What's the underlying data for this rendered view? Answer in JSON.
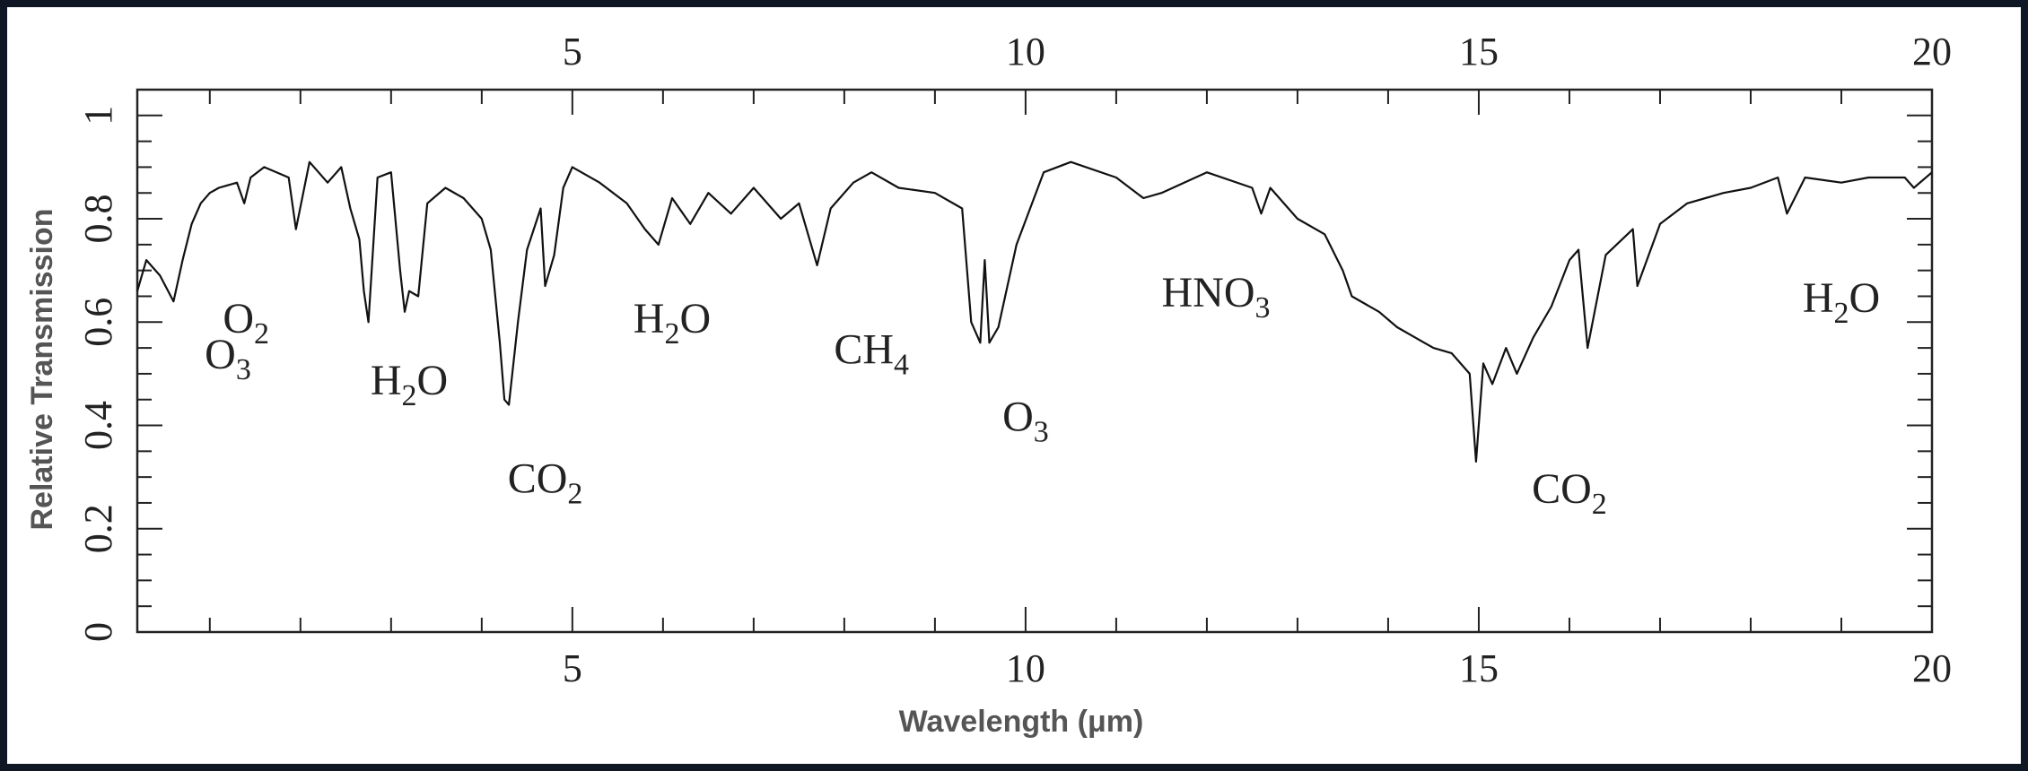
{
  "chart_data": {
    "type": "line",
    "xlabel": "Wavelength (μm)",
    "ylabel": "Relative Transmission",
    "xlim": [
      0.2,
      20
    ],
    "ylim": [
      0,
      1.05
    ],
    "top_axis": true,
    "grid": false,
    "x_ticks": [
      5,
      10,
      15,
      20
    ],
    "y_ticks": [
      0,
      0.2,
      0.4,
      0.6,
      0.8,
      1
    ],
    "x_tick_labels": [
      "5",
      "10",
      "15",
      "20"
    ],
    "y_tick_labels": [
      "0",
      "0.2",
      "0.4",
      "0.6",
      "0.8",
      "1"
    ],
    "series": [
      {
        "x": [
          0.2,
          0.3,
          0.45,
          0.6,
          0.7,
          0.8,
          0.9,
          1.0,
          1.1,
          1.3,
          1.38,
          1.45,
          1.6,
          1.87,
          1.95,
          2.1,
          2.3,
          2.45,
          2.55,
          2.65,
          2.7,
          2.75,
          2.85,
          3.0,
          3.1,
          3.15,
          3.2,
          3.3,
          3.4,
          3.6,
          3.8,
          4.0,
          4.1,
          4.2,
          4.25,
          4.3,
          4.4,
          4.5,
          4.65,
          4.7,
          4.8,
          4.9,
          5.0,
          5.3,
          5.6,
          5.8,
          5.95,
          6.1,
          6.3,
          6.5,
          6.75,
          7.0,
          7.3,
          7.5,
          7.7,
          7.85,
          8.1,
          8.3,
          8.6,
          9.0,
          9.3,
          9.4,
          9.5,
          9.55,
          9.6,
          9.7,
          9.9,
          10.2,
          10.5,
          11.0,
          11.3,
          11.5,
          12.0,
          12.5,
          12.6,
          12.7,
          13.0,
          13.3,
          13.5,
          13.6,
          13.9,
          14.1,
          14.3,
          14.5,
          14.7,
          14.9,
          14.97,
          15.05,
          15.15,
          15.3,
          15.42,
          15.6,
          15.8,
          16.0,
          16.1,
          16.2,
          16.4,
          16.7,
          16.75,
          17.0,
          17.3,
          17.7,
          18.0,
          18.3,
          18.4,
          18.6,
          19.0,
          19.3,
          19.7,
          19.8,
          20.0
        ],
        "y": [
          0.66,
          0.72,
          0.69,
          0.64,
          0.72,
          0.79,
          0.83,
          0.85,
          0.86,
          0.87,
          0.83,
          0.88,
          0.9,
          0.88,
          0.78,
          0.91,
          0.87,
          0.9,
          0.82,
          0.76,
          0.66,
          0.6,
          0.88,
          0.89,
          0.7,
          0.62,
          0.66,
          0.65,
          0.83,
          0.86,
          0.84,
          0.8,
          0.74,
          0.56,
          0.45,
          0.44,
          0.6,
          0.74,
          0.82,
          0.67,
          0.73,
          0.86,
          0.9,
          0.87,
          0.83,
          0.78,
          0.75,
          0.84,
          0.79,
          0.85,
          0.81,
          0.86,
          0.8,
          0.83,
          0.71,
          0.82,
          0.87,
          0.89,
          0.86,
          0.85,
          0.82,
          0.6,
          0.56,
          0.72,
          0.56,
          0.59,
          0.75,
          0.89,
          0.91,
          0.88,
          0.84,
          0.85,
          0.89,
          0.86,
          0.81,
          0.86,
          0.8,
          0.77,
          0.7,
          0.65,
          0.62,
          0.59,
          0.57,
          0.55,
          0.54,
          0.5,
          0.33,
          0.52,
          0.48,
          0.55,
          0.5,
          0.57,
          0.63,
          0.72,
          0.74,
          0.55,
          0.73,
          0.78,
          0.67,
          0.79,
          0.83,
          0.85,
          0.86,
          0.88,
          0.81,
          0.88,
          0.87,
          0.88,
          0.88,
          0.86,
          0.89
        ]
      }
    ],
    "annotations": [
      {
        "text": "O",
        "sub": "2",
        "x": 1.4,
        "y": 0.58
      },
      {
        "text": "O",
        "sub": "3",
        "x": 1.2,
        "y": 0.51
      },
      {
        "text": "H",
        "sub": "2",
        "tail": "O",
        "x": 3.2,
        "y": 0.46
      },
      {
        "text": "CO",
        "sub": "2",
        "x": 4.7,
        "y": 0.27
      },
      {
        "text": "H",
        "sub": "2",
        "tail": "O",
        "x": 6.1,
        "y": 0.58
      },
      {
        "text": "CH",
        "sub": "4",
        "x": 8.3,
        "y": 0.52
      },
      {
        "text": "O",
        "sub": "3",
        "x": 10.0,
        "y": 0.39
      },
      {
        "text": "HNO",
        "sub": "3",
        "x": 12.1,
        "y": 0.63
      },
      {
        "text": "CO",
        "sub": "2",
        "x": 16.0,
        "y": 0.25
      },
      {
        "text": "H",
        "sub": "2",
        "tail": "O",
        "x": 19.0,
        "y": 0.62
      }
    ]
  }
}
